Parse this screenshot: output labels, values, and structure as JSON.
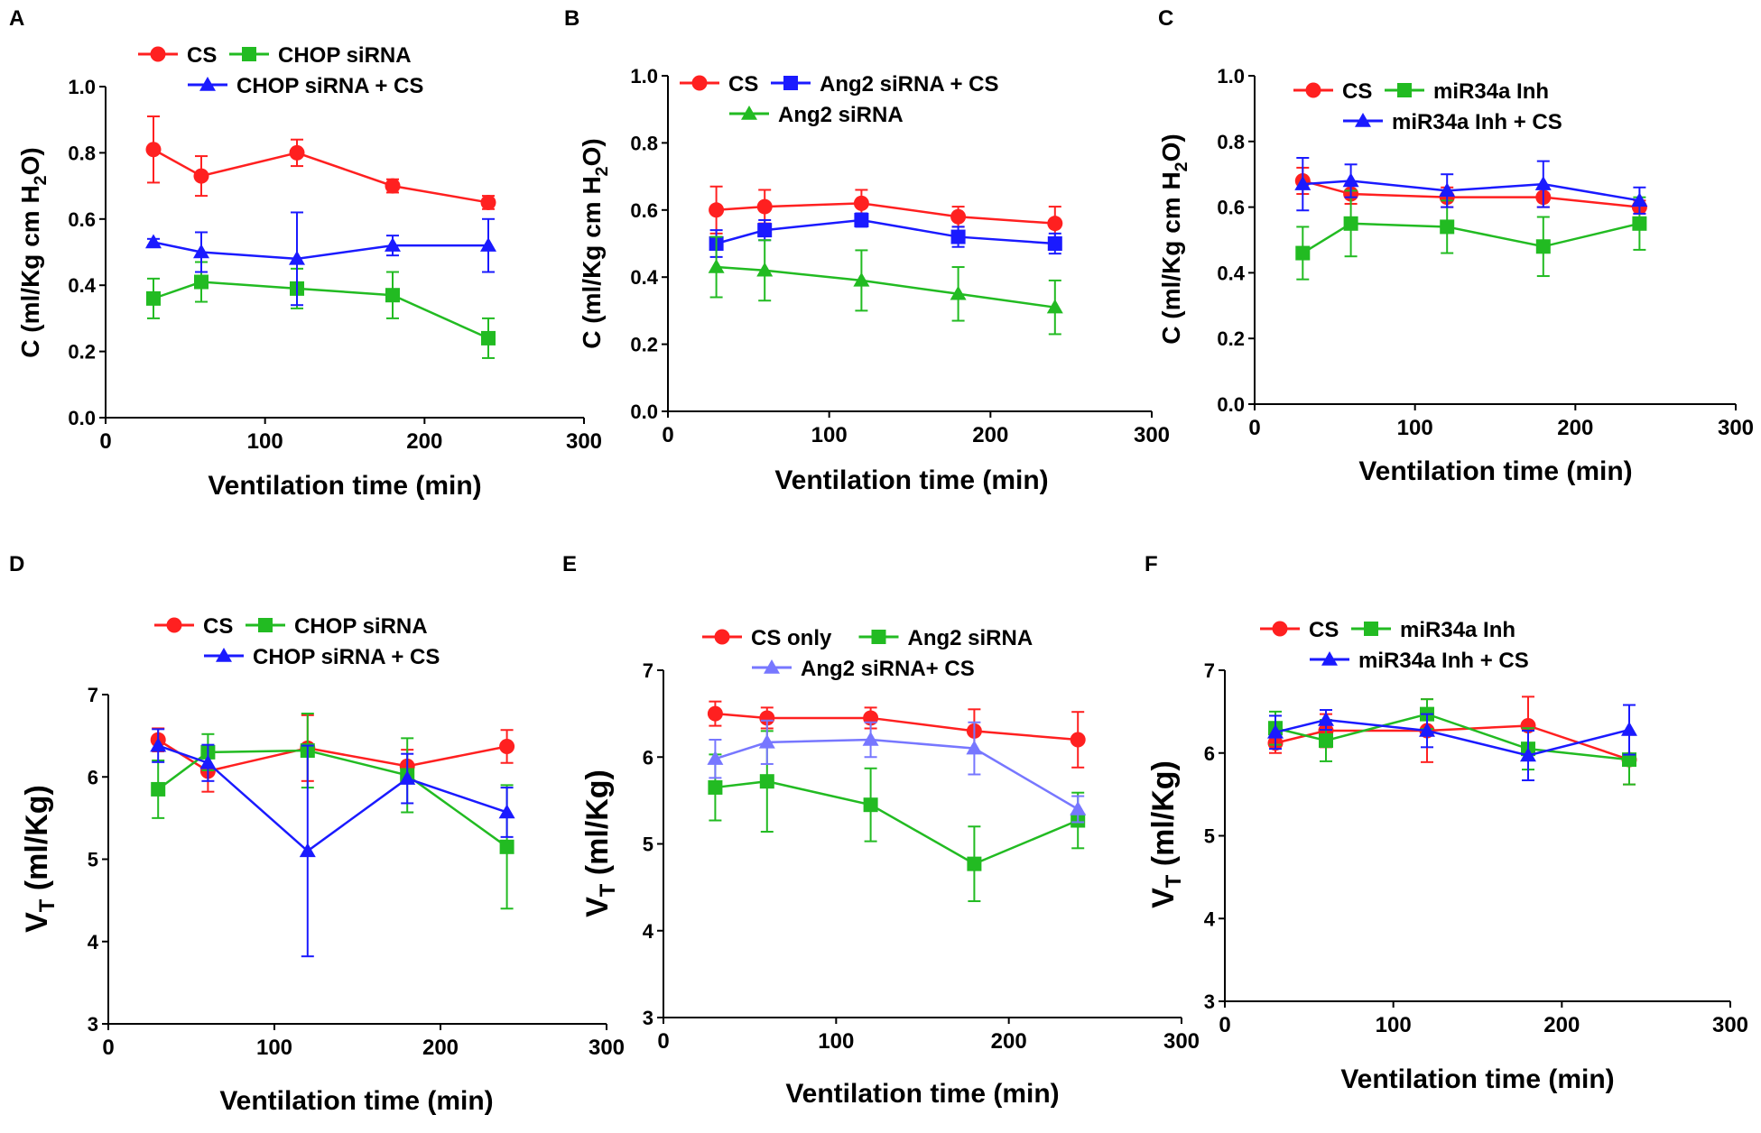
{
  "chart_data": [
    {
      "panel_label": "A",
      "type": "line",
      "xlabel": "Ventilation time (min)",
      "ylabel": {
        "main": "C (ml/Kg cm H",
        "sub": "2",
        "tail": "O)"
      },
      "xlim": [
        0,
        300
      ],
      "ylim": [
        0.0,
        1.0
      ],
      "xticks": [
        0,
        100,
        200,
        300
      ],
      "xtick_labels": [
        "0",
        "100",
        "200",
        "300"
      ],
      "yticks": [
        0.0,
        0.2,
        0.4,
        0.6,
        0.8,
        1.0
      ],
      "ytick_labels": [
        "0.0",
        "0.2",
        "0.4",
        "0.6",
        "0.8",
        "1.0"
      ],
      "x": [
        30,
        60,
        120,
        180,
        240
      ],
      "series": [
        {
          "name": "CS",
          "color": "#ff2020",
          "marker": "circle",
          "values": [
            0.81,
            0.73,
            0.8,
            0.7,
            0.65
          ],
          "errors": [
            0.1,
            0.06,
            0.04,
            0.02,
            0.02
          ]
        },
        {
          "name": "CHOP siRNA",
          "color": "#22bb22",
          "marker": "square",
          "values": [
            0.36,
            0.41,
            0.39,
            0.37,
            0.24
          ],
          "errors": [
            0.06,
            0.06,
            0.06,
            0.07,
            0.06
          ]
        },
        {
          "name": "CHOP siRNA + CS",
          "color": "#1a1aff",
          "marker": "triangle",
          "values": [
            0.53,
            0.5,
            0.48,
            0.52,
            0.52
          ],
          "errors": [
            0.01,
            0.06,
            0.14,
            0.03,
            0.08
          ]
        }
      ],
      "legend_rows": [
        [
          "CS",
          "CHOP siRNA"
        ],
        [
          "CHOP siRNA + CS"
        ]
      ]
    },
    {
      "panel_label": "B",
      "type": "line",
      "xlabel": "Ventilation time (min)",
      "ylabel": {
        "main": "C (ml/Kg cm H",
        "sub": "2",
        "tail": "O)"
      },
      "xlim": [
        0,
        300
      ],
      "ylim": [
        0.0,
        1.0
      ],
      "xticks": [
        0,
        100,
        200,
        300
      ],
      "xtick_labels": [
        "0",
        "100",
        "200",
        "300"
      ],
      "yticks": [
        0.0,
        0.2,
        0.4,
        0.6,
        0.8,
        1.0
      ],
      "ytick_labels": [
        "0.0",
        "0.2",
        "0.4",
        "0.6",
        "0.8",
        "1.0"
      ],
      "x": [
        30,
        60,
        120,
        180,
        240
      ],
      "series": [
        {
          "name": "CS",
          "color": "#ff2020",
          "marker": "circle",
          "values": [
            0.6,
            0.61,
            0.62,
            0.58,
            0.56
          ],
          "errors": [
            0.07,
            0.05,
            0.04,
            0.03,
            0.05
          ]
        },
        {
          "name": "Ang2 siRNA + CS",
          "color": "#1a1aff",
          "marker": "square",
          "values": [
            0.5,
            0.54,
            0.57,
            0.52,
            0.5
          ],
          "errors": [
            0.04,
            0.03,
            0.02,
            0.03,
            0.03
          ]
        },
        {
          "name": "Ang2 siRNA",
          "color": "#22bb22",
          "marker": "triangle",
          "values": [
            0.43,
            0.42,
            0.39,
            0.35,
            0.31
          ],
          "errors": [
            0.09,
            0.09,
            0.09,
            0.08,
            0.08
          ]
        }
      ],
      "legend_rows": [
        [
          "CS",
          "Ang2 siRNA + CS"
        ],
        [
          "Ang2 siRNA"
        ]
      ]
    },
    {
      "panel_label": "C",
      "type": "line",
      "xlabel": "Ventilation time (min)",
      "ylabel": {
        "main": "C (ml/Kg cm H",
        "sub": "2",
        "tail": "O)"
      },
      "xlim": [
        0,
        300
      ],
      "ylim": [
        0.0,
        1.0
      ],
      "xticks": [
        0,
        100,
        200,
        300
      ],
      "xtick_labels": [
        "0",
        "100",
        "200",
        "300"
      ],
      "yticks": [
        0.0,
        0.2,
        0.4,
        0.6,
        0.8,
        1.0
      ],
      "ytick_labels": [
        "0.0",
        "0.2",
        "0.4",
        "0.6",
        "0.8",
        "1.0"
      ],
      "x": [
        30,
        60,
        120,
        180,
        240
      ],
      "series": [
        {
          "name": "CS",
          "color": "#ff2020",
          "marker": "circle",
          "values": [
            0.68,
            0.64,
            0.63,
            0.63,
            0.6
          ],
          "errors": [
            0.04,
            0.03,
            0.03,
            0.03,
            0.02
          ]
        },
        {
          "name": "miR34a Inh",
          "color": "#22bb22",
          "marker": "square",
          "values": [
            0.46,
            0.55,
            0.54,
            0.48,
            0.55
          ],
          "errors": [
            0.08,
            0.1,
            0.08,
            0.09,
            0.08
          ]
        },
        {
          "name": "miR34a Inh + CS",
          "color": "#1a1aff",
          "marker": "triangle",
          "values": [
            0.67,
            0.68,
            0.65,
            0.67,
            0.62
          ],
          "errors": [
            0.08,
            0.05,
            0.05,
            0.07,
            0.04
          ]
        }
      ],
      "legend_rows": [
        [
          "CS",
          "miR34a Inh"
        ],
        [
          "miR34a Inh + CS"
        ]
      ]
    },
    {
      "panel_label": "D",
      "type": "line",
      "xlabel": "Ventilation time (min)",
      "ylabel": {
        "main": "V",
        "sub": "T",
        "tail": " (ml/Kg)"
      },
      "xlim": [
        0,
        300
      ],
      "ylim": [
        3,
        7
      ],
      "xticks": [
        0,
        100,
        200,
        300
      ],
      "xtick_labels": [
        "0",
        "100",
        "200",
        "300"
      ],
      "yticks": [
        3,
        4,
        5,
        6,
        7
      ],
      "ytick_labels": [
        "3",
        "4",
        "5",
        "6",
        "7"
      ],
      "x": [
        30,
        60,
        120,
        180,
        240
      ],
      "series": [
        {
          "name": "CS",
          "color": "#ff2020",
          "marker": "circle",
          "values": [
            6.45,
            6.07,
            6.35,
            6.13,
            6.37
          ],
          "errors": [
            0.14,
            0.25,
            0.4,
            0.2,
            0.2
          ]
        },
        {
          "name": "CHOP siRNA",
          "color": "#22bb22",
          "marker": "square",
          "values": [
            5.85,
            6.3,
            6.32,
            6.02,
            5.15
          ],
          "errors": [
            0.35,
            0.22,
            0.45,
            0.45,
            0.75
          ]
        },
        {
          "name": "CHOP siRNA + CS",
          "color": "#1a1aff",
          "marker": "triangle",
          "values": [
            6.38,
            6.17,
            5.1,
            5.98,
            5.57
          ],
          "errors": [
            0.2,
            0.22,
            1.28,
            0.3,
            0.3
          ]
        }
      ],
      "legend_rows": [
        [
          "CS",
          "CHOP siRNA"
        ],
        [
          "CHOP siRNA + CS"
        ]
      ]
    },
    {
      "panel_label": "E",
      "type": "line",
      "xlabel": "Ventilation time (min)",
      "ylabel": {
        "main": "V",
        "sub": "T",
        "tail": " (ml/Kg)"
      },
      "xlim": [
        0,
        300
      ],
      "ylim": [
        3,
        7
      ],
      "xticks": [
        0,
        100,
        200,
        300
      ],
      "xtick_labels": [
        "0",
        "100",
        "200",
        "300"
      ],
      "yticks": [
        3,
        4,
        5,
        6,
        7
      ],
      "ytick_labels": [
        "3",
        "4",
        "5",
        "6",
        "7"
      ],
      "x": [
        30,
        60,
        120,
        180,
        240
      ],
      "series": [
        {
          "name": "CS only",
          "color": "#ff2020",
          "marker": "circle",
          "values": [
            6.5,
            6.45,
            6.45,
            6.3,
            6.2
          ],
          "errors": [
            0.14,
            0.12,
            0.12,
            0.25,
            0.32
          ]
        },
        {
          "name": "Ang2 siRNA",
          "color": "#22bb22",
          "marker": "square",
          "values": [
            5.65,
            5.72,
            5.45,
            4.77,
            5.27
          ],
          "errors": [
            0.38,
            0.58,
            0.42,
            0.43,
            0.32
          ]
        },
        {
          "name": "Ang2 siRNA+ CS",
          "color": "#7777ff",
          "marker": "triangle",
          "values": [
            5.98,
            6.17,
            6.2,
            6.1,
            5.4
          ],
          "errors": [
            0.22,
            0.25,
            0.2,
            0.3,
            0.15
          ]
        }
      ],
      "legend_rows": [
        [
          "CS only",
          "Ang2 siRNA"
        ],
        [
          "Ang2 siRNA+ CS"
        ]
      ]
    },
    {
      "panel_label": "F",
      "type": "line",
      "xlabel": "Ventilation time (min)",
      "ylabel": {
        "main": "V",
        "sub": "T",
        "tail": " (ml/Kg)"
      },
      "xlim": [
        0,
        300
      ],
      "ylim": [
        3,
        7
      ],
      "xticks": [
        0,
        100,
        200,
        300
      ],
      "xtick_labels": [
        "0",
        "100",
        "200",
        "300"
      ],
      "yticks": [
        3,
        4,
        5,
        6,
        7
      ],
      "ytick_labels": [
        "3",
        "4",
        "5",
        "6",
        "7"
      ],
      "x": [
        30,
        60,
        120,
        180,
        240
      ],
      "series": [
        {
          "name": "CS",
          "color": "#ff2020",
          "marker": "circle",
          "values": [
            6.12,
            6.27,
            6.27,
            6.33,
            5.92
          ],
          "errors": [
            0.12,
            0.2,
            0.38,
            0.35,
            0.3
          ]
        },
        {
          "name": "miR34a Inh",
          "color": "#22bb22",
          "marker": "square",
          "values": [
            6.3,
            6.15,
            6.47,
            6.05,
            5.92
          ],
          "errors": [
            0.2,
            0.25,
            0.18,
            0.25,
            0.3
          ]
        },
        {
          "name": "miR34a Inh + CS",
          "color": "#1a1aff",
          "marker": "triangle",
          "values": [
            6.25,
            6.4,
            6.27,
            5.97,
            6.28
          ],
          "errors": [
            0.2,
            0.12,
            0.2,
            0.3,
            0.3
          ]
        }
      ],
      "legend_rows": [
        [
          "CS",
          "miR34a Inh"
        ],
        [
          "miR34a Inh + CS"
        ]
      ]
    }
  ]
}
